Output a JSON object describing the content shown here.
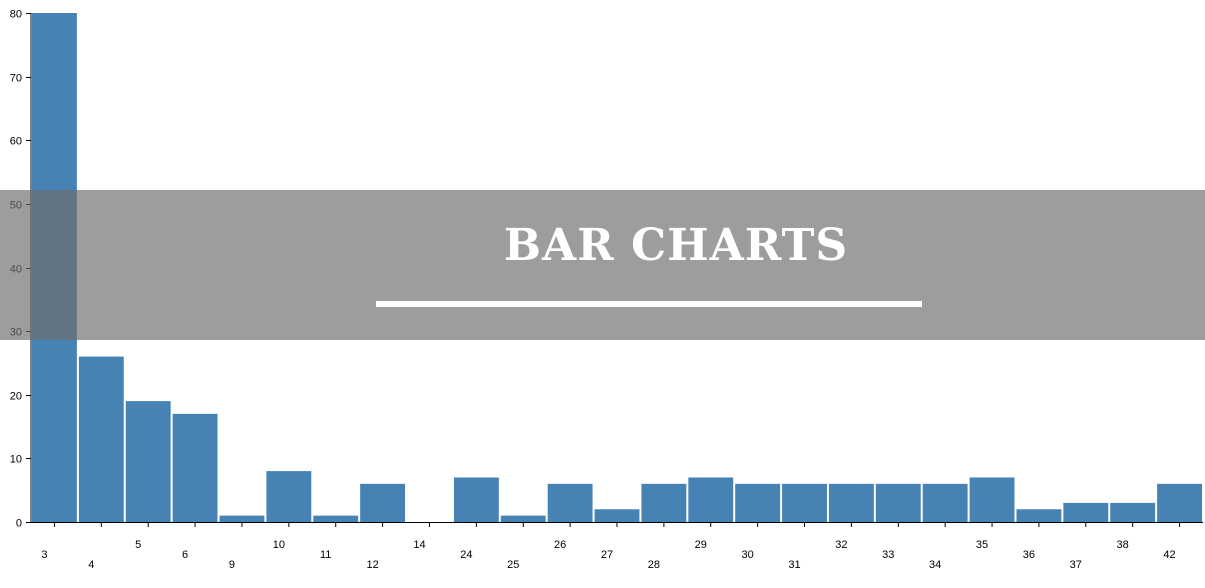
{
  "banner": {
    "title": "BAR CHARTS"
  },
  "chart_data": {
    "type": "bar",
    "title": "",
    "xlabel": "",
    "ylabel": "",
    "categories": [
      "3",
      "4",
      "5",
      "6",
      "9",
      "10",
      "11",
      "12",
      "14",
      "24",
      "25",
      "26",
      "27",
      "28",
      "29",
      "30",
      "31",
      "32",
      "33",
      "34",
      "35",
      "36",
      "37",
      "38",
      "42"
    ],
    "values": [
      80,
      26,
      19,
      17,
      1,
      8,
      1,
      6,
      0,
      7,
      1,
      6,
      2,
      6,
      7,
      6,
      6,
      6,
      6,
      6,
      7,
      2,
      3,
      3,
      6
    ],
    "ylim": [
      0,
      80
    ],
    "yticks": [
      0,
      10,
      20,
      30,
      40,
      50,
      60,
      70,
      80
    ],
    "bar_color": "#4682b4",
    "grid": false,
    "legend": "none"
  }
}
